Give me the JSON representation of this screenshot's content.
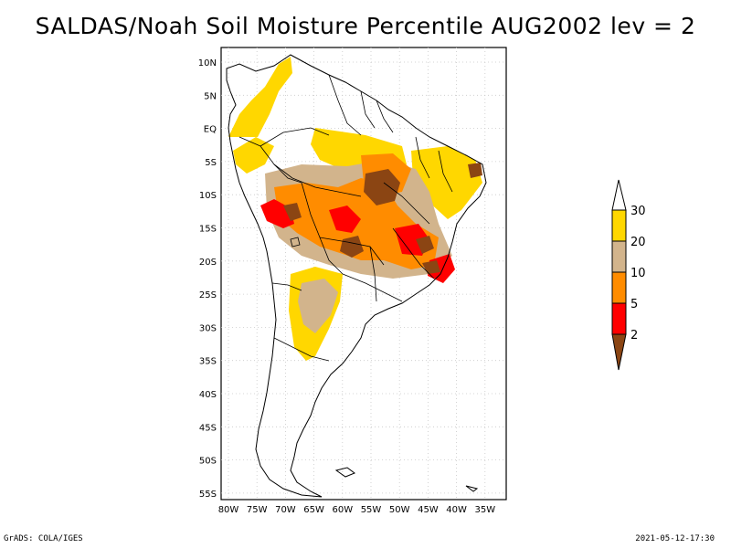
{
  "title": "SALDAS/Noah Soil Moisture Percentile AUG2002 lev = 2",
  "footer": {
    "left": "GrADS: COLA/IGES",
    "right": "2021-05-12-17:30"
  },
  "map": {
    "lat_labels": [
      "10N",
      "5N",
      "EQ",
      "5S",
      "10S",
      "15S",
      "20S",
      "25S",
      "30S",
      "35S",
      "40S",
      "45S",
      "50S",
      "55S"
    ],
    "lon_labels": [
      "80W",
      "75W",
      "70W",
      "65W",
      "60W",
      "55W",
      "50W",
      "45W",
      "40W",
      "35W"
    ]
  },
  "colorbar": {
    "levels": [
      "2",
      "5",
      "10",
      "20",
      "30"
    ],
    "colors": {
      "below_2": "#8b4513",
      "2_to_5": "#ff0000",
      "5_to_10": "#ff8c00",
      "10_to_20": "#d2b48c",
      "20_to_30": "#ffd700",
      "above_30": "#ffffff"
    }
  },
  "colors": {
    "land_outline": "#000000",
    "grid": "#bdbdbd"
  }
}
